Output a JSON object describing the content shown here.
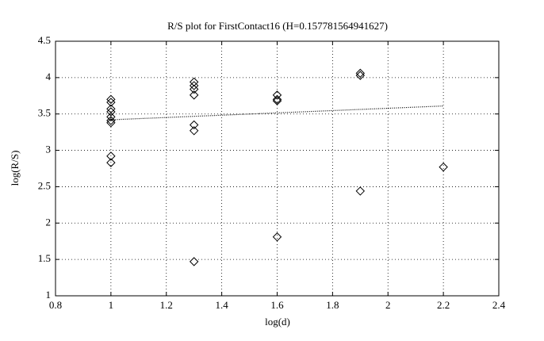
{
  "chart_data": {
    "type": "scatter",
    "title": "R/S plot for FirstContact16 (H=0.157781564941627)",
    "xlabel": "log(d)",
    "ylabel": "log(R/S)",
    "xlim": [
      0.8,
      2.4
    ],
    "xticks": [
      0.8,
      1,
      1.2,
      1.4,
      1.6,
      1.8,
      2,
      2.2,
      2.4
    ],
    "ylim": [
      1,
      4.5
    ],
    "yticks": [
      1,
      1.5,
      2,
      2.5,
      3,
      3.5,
      4,
      4.5
    ],
    "grid": true,
    "series": [
      {
        "marker": "diamond",
        "color": "#000000",
        "x": [
          1,
          1,
          1,
          1,
          1,
          1,
          1,
          1,
          1,
          1.3,
          1.3,
          1.3,
          1.3,
          1.3,
          1.3,
          1.3,
          1.6,
          1.6,
          1.6,
          1.6,
          1.9,
          1.9,
          1.9,
          2.2
        ],
        "values": [
          3.7,
          3.66,
          3.57,
          3.53,
          3.46,
          3.41,
          3.38,
          2.92,
          2.83,
          3.94,
          3.89,
          3.84,
          3.76,
          3.35,
          3.27,
          1.47,
          3.76,
          3.7,
          3.68,
          1.81,
          4.06,
          4.03,
          2.44,
          2.77
        ]
      },
      {
        "marker": "dotted-line",
        "color": "#000000",
        "x": [
          1,
          2.2
        ],
        "values": [
          3.42,
          3.61
        ]
      }
    ]
  }
}
